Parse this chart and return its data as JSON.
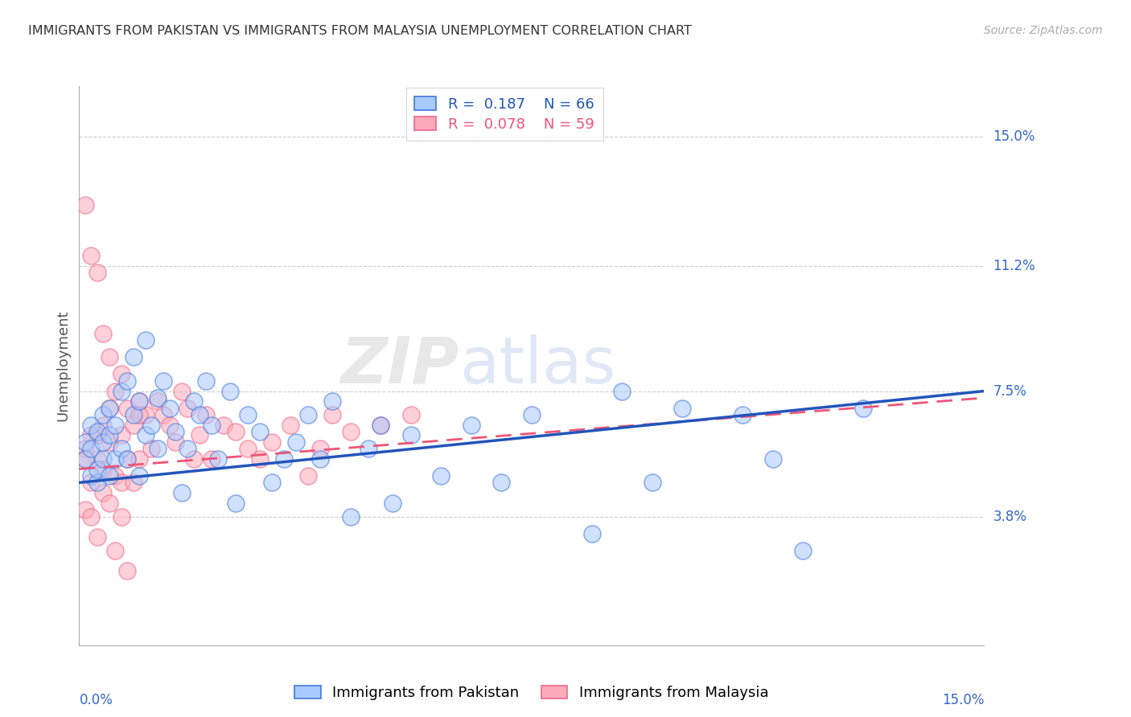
{
  "title": "IMMIGRANTS FROM PAKISTAN VS IMMIGRANTS FROM MALAYSIA UNEMPLOYMENT CORRELATION CHART",
  "source": "Source: ZipAtlas.com",
  "ylabel": "Unemployment",
  "xmin": 0.0,
  "xmax": 0.15,
  "ymin": 0.0,
  "ymax": 0.165,
  "ytick_values": [
    0.038,
    0.075,
    0.112,
    0.15
  ],
  "ytick_labels": [
    "3.8%",
    "7.5%",
    "11.2%",
    "15.0%"
  ],
  "xtick_left_label": "0.0%",
  "xtick_right_label": "15.0%",
  "color_pakistan_fill": "#A8CAFE",
  "color_pakistan_edge": "#4477DD",
  "color_malaysia_fill": "#FFAABB",
  "color_malaysia_edge": "#EE6688",
  "color_line_pakistan": "#2255BB",
  "color_line_malaysia": "#EE5577",
  "watermark_zip": "ZIP",
  "watermark_atlas": "atlas",
  "R1": "0.187",
  "N1": "66",
  "R2": "0.078",
  "N2": "59",
  "legend1_label": "Immigrants from Pakistan",
  "legend2_label": "Immigrants from Malaysia",
  "pk_line_start_y": 0.048,
  "pk_line_end_y": 0.075,
  "my_line_start_y": 0.052,
  "my_line_end_y": 0.073,
  "pakistan_x": [
    0.001,
    0.001,
    0.002,
    0.002,
    0.002,
    0.003,
    0.003,
    0.003,
    0.004,
    0.004,
    0.004,
    0.005,
    0.005,
    0.005,
    0.006,
    0.006,
    0.007,
    0.007,
    0.008,
    0.008,
    0.009,
    0.009,
    0.01,
    0.01,
    0.011,
    0.011,
    0.012,
    0.013,
    0.013,
    0.014,
    0.015,
    0.016,
    0.017,
    0.018,
    0.019,
    0.02,
    0.021,
    0.022,
    0.023,
    0.025,
    0.026,
    0.028,
    0.03,
    0.032,
    0.034,
    0.036,
    0.038,
    0.04,
    0.042,
    0.045,
    0.048,
    0.05,
    0.052,
    0.055,
    0.06,
    0.065,
    0.07,
    0.075,
    0.085,
    0.09,
    0.095,
    0.1,
    0.11,
    0.115,
    0.12,
    0.13
  ],
  "pakistan_y": [
    0.06,
    0.055,
    0.065,
    0.05,
    0.058,
    0.048,
    0.052,
    0.063,
    0.055,
    0.06,
    0.068,
    0.05,
    0.062,
    0.07,
    0.055,
    0.065,
    0.075,
    0.058,
    0.078,
    0.055,
    0.085,
    0.068,
    0.05,
    0.072,
    0.062,
    0.09,
    0.065,
    0.073,
    0.058,
    0.078,
    0.07,
    0.063,
    0.045,
    0.058,
    0.072,
    0.068,
    0.078,
    0.065,
    0.055,
    0.075,
    0.042,
    0.068,
    0.063,
    0.048,
    0.055,
    0.06,
    0.068,
    0.055,
    0.072,
    0.038,
    0.058,
    0.065,
    0.042,
    0.062,
    0.05,
    0.065,
    0.048,
    0.068,
    0.033,
    0.075,
    0.048,
    0.07,
    0.068,
    0.055,
    0.028,
    0.07
  ],
  "malaysia_x": [
    0.001,
    0.001,
    0.001,
    0.002,
    0.002,
    0.002,
    0.003,
    0.003,
    0.003,
    0.004,
    0.004,
    0.004,
    0.005,
    0.005,
    0.005,
    0.006,
    0.006,
    0.007,
    0.007,
    0.007,
    0.008,
    0.008,
    0.009,
    0.009,
    0.01,
    0.01,
    0.011,
    0.012,
    0.013,
    0.014,
    0.015,
    0.016,
    0.017,
    0.018,
    0.019,
    0.02,
    0.021,
    0.022,
    0.024,
    0.026,
    0.028,
    0.03,
    0.032,
    0.035,
    0.038,
    0.04,
    0.042,
    0.045,
    0.05,
    0.055,
    0.001,
    0.002,
    0.003,
    0.004,
    0.005,
    0.006,
    0.007,
    0.008,
    0.01
  ],
  "malaysia_y": [
    0.13,
    0.058,
    0.04,
    0.115,
    0.062,
    0.048,
    0.11,
    0.055,
    0.062,
    0.092,
    0.052,
    0.065,
    0.085,
    0.06,
    0.07,
    0.075,
    0.05,
    0.08,
    0.062,
    0.048,
    0.07,
    0.055,
    0.065,
    0.048,
    0.072,
    0.055,
    0.068,
    0.058,
    0.072,
    0.068,
    0.065,
    0.06,
    0.075,
    0.07,
    0.055,
    0.062,
    0.068,
    0.055,
    0.065,
    0.063,
    0.058,
    0.055,
    0.06,
    0.065,
    0.05,
    0.058,
    0.068,
    0.063,
    0.065,
    0.068,
    0.055,
    0.038,
    0.032,
    0.045,
    0.042,
    0.028,
    0.038,
    0.022,
    0.068
  ]
}
